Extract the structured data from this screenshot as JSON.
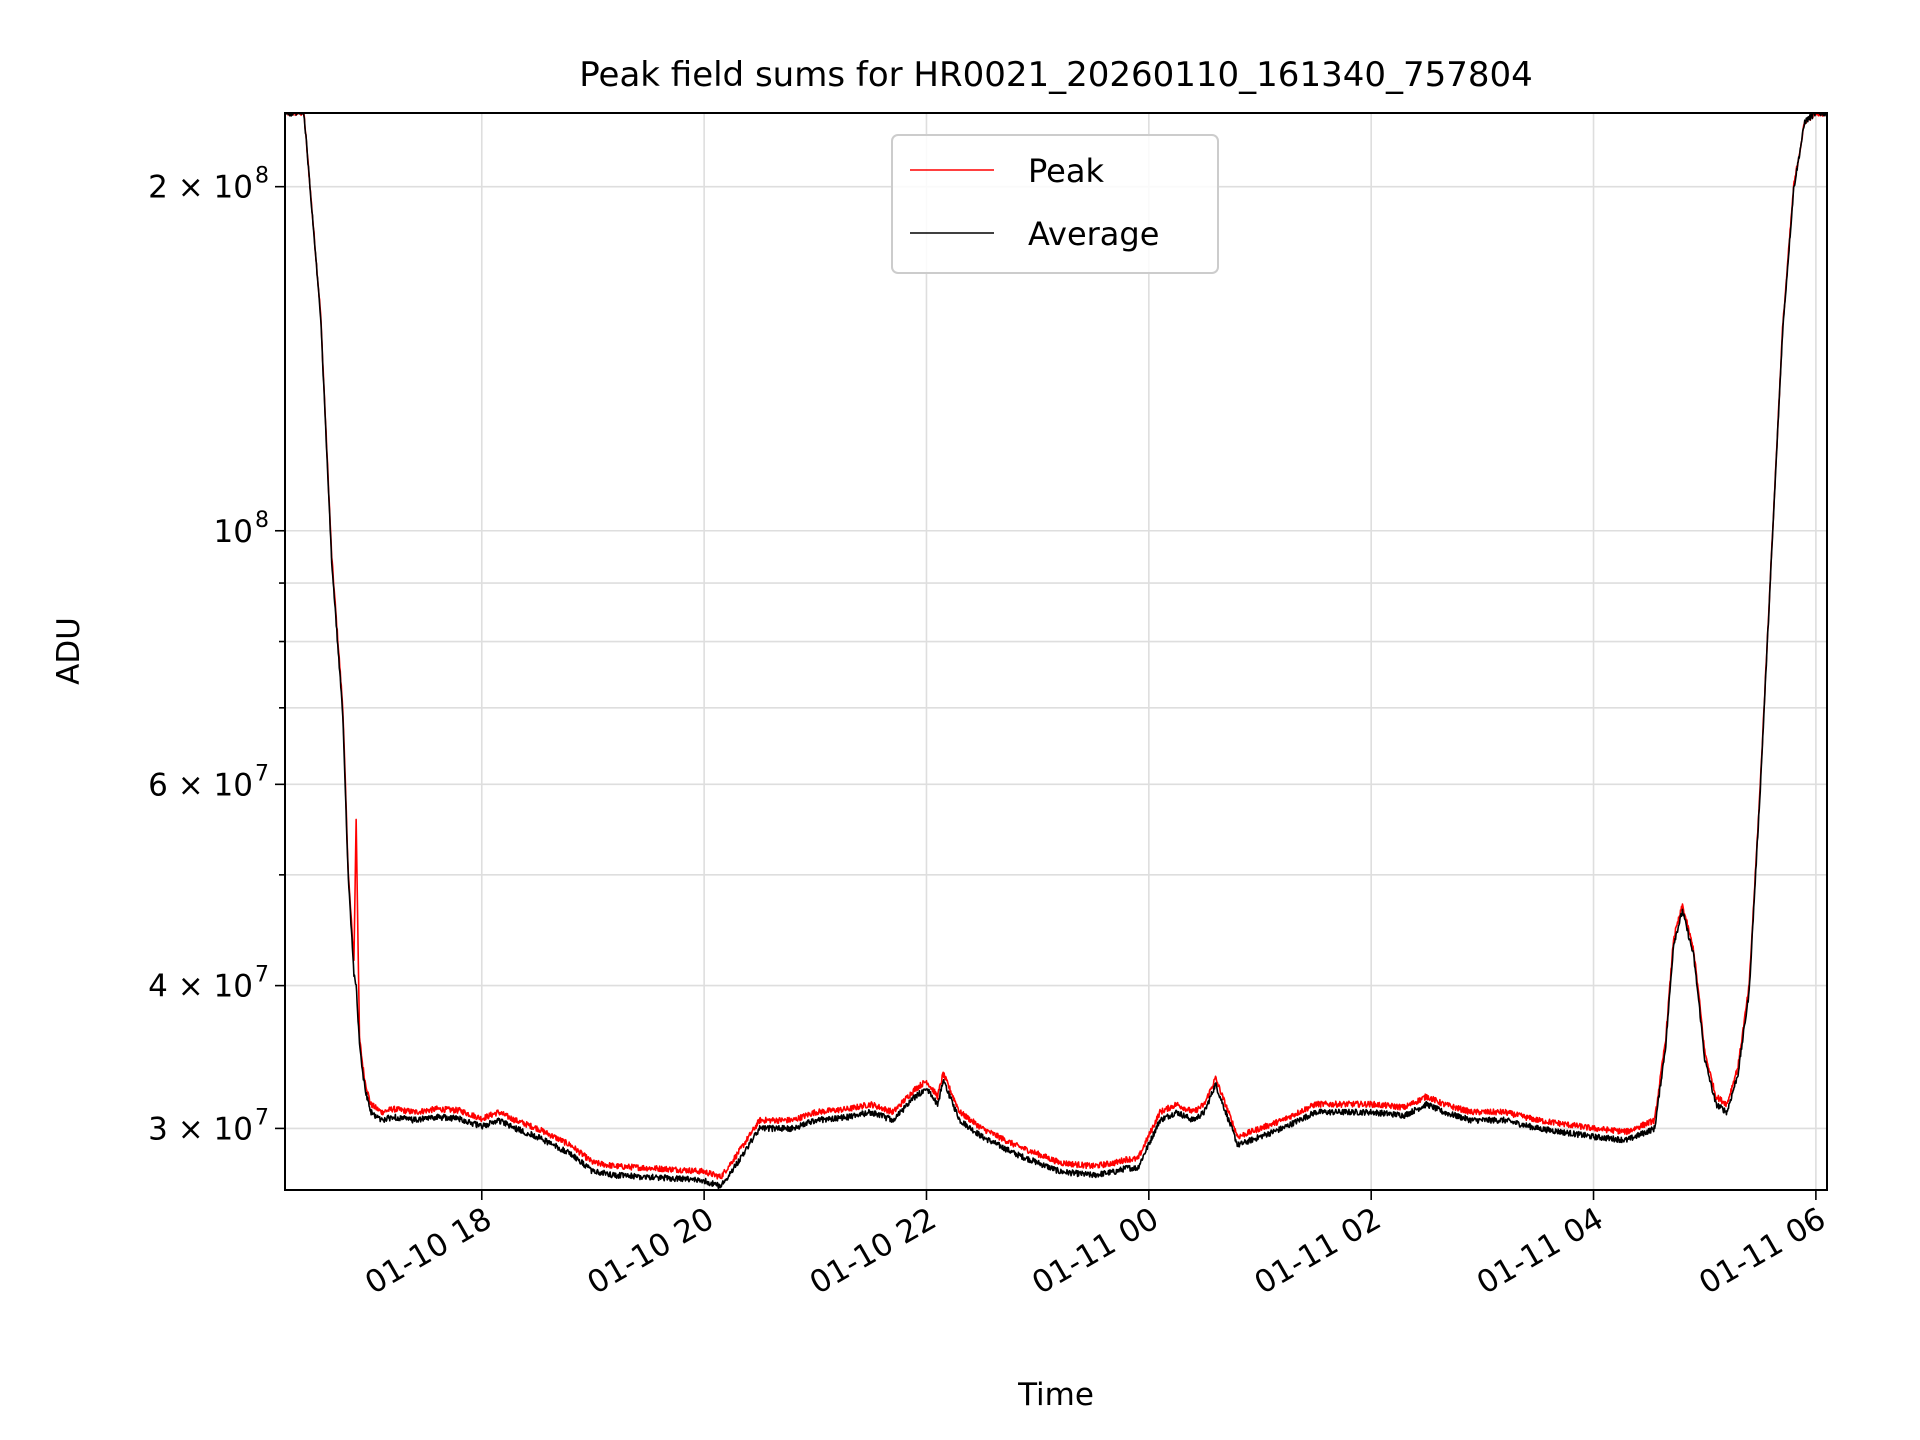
{
  "chart_data": {
    "type": "line",
    "title": "Peak field sums for HR0021_20260110_161340_757804",
    "xlabel": "Time",
    "ylabel": "ADU",
    "yscale": "log",
    "ylim": [
      26500000,
      232000000
    ],
    "xlim_hours": [
      16.23,
      30.1
    ],
    "x_unit": "hours since 2026-01-10 00:00",
    "grid": true,
    "legend_position": "upper center",
    "x_ticks": [
      {
        "hour": 18,
        "label": "01-10 18"
      },
      {
        "hour": 20,
        "label": "01-10 20"
      },
      {
        "hour": 22,
        "label": "01-10 22"
      },
      {
        "hour": 24,
        "label": "01-11 00"
      },
      {
        "hour": 26,
        "label": "01-11 02"
      },
      {
        "hour": 28,
        "label": "01-11 04"
      },
      {
        "hour": 30,
        "label": "01-11 06"
      }
    ],
    "y_major_ticks": [
      {
        "value": 30000000,
        "base": "3 × 10",
        "exp": "7"
      },
      {
        "value": 40000000,
        "base": "4 × 10",
        "exp": "7"
      },
      {
        "value": 60000000,
        "base": "6 × 10",
        "exp": "7"
      },
      {
        "value": 100000000,
        "base": "10",
        "exp": "8"
      },
      {
        "value": 200000000,
        "base": "2 × 10",
        "exp": "8"
      }
    ],
    "y_minor_ticks": [
      50000000,
      70000000,
      80000000,
      90000000
    ],
    "series": [
      {
        "name": "Peak",
        "color": "#ff0000",
        "x": [
          16.23,
          16.4,
          16.55,
          16.65,
          16.75,
          16.8,
          16.85,
          16.87,
          16.9,
          16.93,
          16.95,
          17.0,
          17.1,
          17.2,
          17.4,
          17.6,
          17.8,
          18.0,
          18.15,
          18.3,
          18.5,
          18.8,
          19.0,
          19.2,
          19.5,
          19.8,
          20.0,
          20.15,
          20.3,
          20.5,
          20.8,
          21.0,
          21.3,
          21.5,
          21.7,
          21.9,
          22.0,
          22.1,
          22.15,
          22.3,
          22.5,
          22.8,
          23.0,
          23.2,
          23.5,
          23.7,
          23.8,
          23.9,
          24.1,
          24.25,
          24.4,
          24.5,
          24.6,
          24.8,
          25.0,
          25.2,
          25.5,
          25.8,
          26.0,
          26.3,
          26.5,
          26.65,
          26.9,
          27.2,
          27.5,
          27.8,
          28.0,
          28.3,
          28.55,
          28.65,
          28.72,
          28.8,
          28.9,
          28.95,
          29.0,
          29.1,
          29.2,
          29.3,
          29.4,
          29.5,
          29.6,
          29.7,
          29.8,
          29.9,
          30.0,
          30.1
        ],
        "values": [
          232000000,
          232000000,
          155000000,
          95000000,
          70000000,
          50000000,
          42000000,
          56000000,
          36000000,
          34000000,
          33000000,
          31500000,
          31000000,
          31200000,
          31000000,
          31200000,
          31100000,
          30600000,
          31000000,
          30500000,
          30000000,
          29000000,
          28000000,
          27800000,
          27700000,
          27600000,
          27500000,
          27200000,
          28500000,
          30500000,
          30500000,
          31000000,
          31200000,
          31500000,
          31000000,
          32500000,
          33000000,
          32000000,
          33500000,
          31000000,
          30000000,
          29000000,
          28500000,
          28000000,
          27800000,
          28000000,
          28200000,
          28200000,
          31000000,
          31500000,
          31000000,
          31500000,
          33200000,
          29500000,
          30000000,
          30500000,
          31500000,
          31500000,
          31500000,
          31300000,
          32000000,
          31500000,
          31000000,
          31000000,
          30500000,
          30200000,
          30000000,
          29800000,
          30500000,
          36000000,
          44000000,
          47000000,
          43000000,
          39000000,
          35000000,
          32000000,
          31500000,
          34000000,
          40000000,
          60000000,
          95000000,
          150000000,
          200000000,
          228000000,
          232000000,
          232000000
        ],
        "noise_amplitude": 0.012
      },
      {
        "name": "Average",
        "color": "#000000",
        "x": [
          16.23,
          16.4,
          16.55,
          16.65,
          16.75,
          16.8,
          16.85,
          16.87,
          16.9,
          16.93,
          16.95,
          17.0,
          17.1,
          17.2,
          17.4,
          17.6,
          17.8,
          18.0,
          18.15,
          18.3,
          18.5,
          18.8,
          19.0,
          19.2,
          19.5,
          19.8,
          20.0,
          20.15,
          20.3,
          20.5,
          20.8,
          21.0,
          21.3,
          21.5,
          21.7,
          21.9,
          22.0,
          22.1,
          22.15,
          22.3,
          22.5,
          22.8,
          23.0,
          23.2,
          23.5,
          23.7,
          23.8,
          23.9,
          24.1,
          24.25,
          24.4,
          24.5,
          24.6,
          24.8,
          25.0,
          25.2,
          25.5,
          25.8,
          26.0,
          26.3,
          26.5,
          26.65,
          26.9,
          27.2,
          27.5,
          27.8,
          28.0,
          28.3,
          28.55,
          28.65,
          28.72,
          28.8,
          28.9,
          28.95,
          29.0,
          29.1,
          29.2,
          29.3,
          29.4,
          29.5,
          29.6,
          29.7,
          29.8,
          29.9,
          30.0,
          30.1
        ],
        "values": [
          232000000,
          232000000,
          154000000,
          94000000,
          69000000,
          49500000,
          41000000,
          40000000,
          35500000,
          33500000,
          32500000,
          31000000,
          30500000,
          30700000,
          30500000,
          30700000,
          30600000,
          30100000,
          30500000,
          30000000,
          29500000,
          28500000,
          27500000,
          27300000,
          27200000,
          27100000,
          27000000,
          26700000,
          28000000,
          30000000,
          30000000,
          30500000,
          30700000,
          31000000,
          30500000,
          32000000,
          32500000,
          31500000,
          33000000,
          30500000,
          29500000,
          28500000,
          28000000,
          27500000,
          27300000,
          27500000,
          27700000,
          27700000,
          30500000,
          31000000,
          30500000,
          31000000,
          32800000,
          29000000,
          29500000,
          30000000,
          31000000,
          31000000,
          31000000,
          30800000,
          31500000,
          31000000,
          30500000,
          30500000,
          30000000,
          29700000,
          29500000,
          29300000,
          30000000,
          35500000,
          43500000,
          46500000,
          42500000,
          38500000,
          34500000,
          31500000,
          31000000,
          33500000,
          39500000,
          59500000,
          94500000,
          149000000,
          199000000,
          228000000,
          232000000,
          232000000
        ],
        "noise_amplitude": 0.012
      }
    ]
  }
}
